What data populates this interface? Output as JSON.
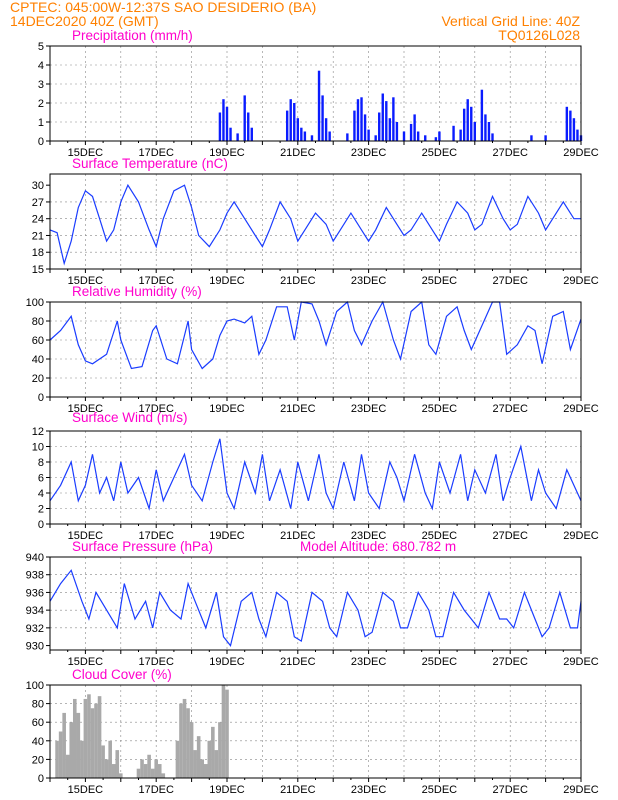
{
  "header": {
    "line1": "CPTEC:   045:00W-12:37S  SAO DESIDERIO (BA)",
    "line2_left": "14DEC2020 40Z (GMT)",
    "line2_right": "Vertical Grid Line: 40Z",
    "line3_right": "TQ0126L028"
  },
  "colors": {
    "series": "#1a3cff",
    "bars": "#0a1cff",
    "title": "#ff00cc",
    "header": "#ff8000",
    "cloud": "#a9a9a9"
  },
  "x_labels": [
    "15DEC",
    "17DEC",
    "19DEC",
    "21DEC",
    "23DEC",
    "25DEC",
    "27DEC",
    "29DEC"
  ],
  "chart_data": [
    {
      "type": "bar",
      "title": "Precipitation (mm/h)",
      "ylim": [
        0,
        5
      ],
      "yticks": [
        0,
        1,
        2,
        3,
        4,
        5
      ],
      "x": [
        18.8,
        18.9,
        19.0,
        19.1,
        19.3,
        19.5,
        19.6,
        19.7,
        20.7,
        20.8,
        20.9,
        21.0,
        21.1,
        21.2,
        21.4,
        21.6,
        21.7,
        21.8,
        21.9,
        22.4,
        22.6,
        22.7,
        22.8,
        22.9,
        23.0,
        23.2,
        23.3,
        23.4,
        23.5,
        23.6,
        23.7,
        23.8,
        24.0,
        24.2,
        24.3,
        24.4,
        24.6,
        24.9,
        25.0,
        25.4,
        25.6,
        25.7,
        25.8,
        25.9,
        26.0,
        26.2,
        26.3,
        26.4,
        26.5,
        27.6,
        28.0,
        28.6,
        28.7,
        28.8,
        28.9,
        29.0
      ],
      "values": [
        1.5,
        2.2,
        1.8,
        0.7,
        0.4,
        2.4,
        1.5,
        0.7,
        1.6,
        2.2,
        2.0,
        1.2,
        0.7,
        0.5,
        0.3,
        3.7,
        2.4,
        1.2,
        0.5,
        0.4,
        1.6,
        2.2,
        2.3,
        1.4,
        0.6,
        0.3,
        1.5,
        2.5,
        2.1,
        1.2,
        2.3,
        1.0,
        0.5,
        0.9,
        1.4,
        0.5,
        0.3,
        0.2,
        0.5,
        0.8,
        0.6,
        1.7,
        2.2,
        1.8,
        1.0,
        2.7,
        1.4,
        1.0,
        0.4,
        0.3,
        0.3,
        1.8,
        1.6,
        1.2,
        0.6,
        0.3
      ]
    },
    {
      "type": "line",
      "title": "Surface Temperature (nC)",
      "ylim": [
        15,
        32
      ],
      "yticks": [
        15,
        18,
        21,
        24,
        27,
        30
      ],
      "x": [
        14.0,
        14.2,
        14.4,
        14.6,
        14.8,
        15.0,
        15.2,
        15.4,
        15.6,
        15.8,
        16.0,
        16.2,
        16.5,
        16.8,
        17.0,
        17.2,
        17.5,
        17.8,
        18.0,
        18.2,
        18.5,
        18.8,
        19.0,
        19.2,
        19.5,
        19.8,
        20.0,
        20.2,
        20.5,
        20.8,
        21.0,
        21.2,
        21.5,
        21.8,
        22.0,
        22.2,
        22.5,
        22.8,
        23.0,
        23.2,
        23.5,
        23.8,
        24.0,
        24.2,
        24.5,
        24.8,
        25.0,
        25.2,
        25.5,
        25.8,
        26.0,
        26.2,
        26.5,
        26.8,
        27.0,
        27.2,
        27.5,
        27.8,
        28.0,
        28.2,
        28.5,
        28.8,
        29.0
      ],
      "values": [
        22,
        21.5,
        16,
        20,
        26,
        29,
        28,
        24,
        20,
        22,
        27,
        30,
        27,
        22,
        19,
        24,
        29,
        30,
        26,
        21,
        19,
        22,
        25,
        27,
        24,
        21,
        19,
        22,
        27,
        24,
        20,
        22,
        25,
        23,
        20,
        22,
        25,
        22,
        20,
        22,
        26,
        23,
        21,
        22,
        25,
        22,
        20,
        23,
        27,
        25,
        22,
        23,
        28,
        24,
        22,
        23,
        28,
        25,
        22,
        24,
        27,
        24,
        24
      ]
    },
    {
      "type": "line",
      "title": "Relative Humidity (%)",
      "ylim": [
        0,
        100
      ],
      "yticks": [
        0,
        20,
        40,
        60,
        80,
        100
      ],
      "x": [
        14.0,
        14.3,
        14.6,
        14.8,
        15.0,
        15.2,
        15.6,
        15.9,
        16.0,
        16.3,
        16.6,
        16.9,
        17.0,
        17.3,
        17.6,
        17.9,
        18.0,
        18.3,
        18.6,
        18.8,
        19.0,
        19.2,
        19.5,
        19.7,
        19.9,
        20.1,
        20.4,
        20.7,
        20.9,
        21.1,
        21.4,
        21.6,
        21.8,
        22.1,
        22.4,
        22.6,
        22.8,
        23.1,
        23.4,
        23.7,
        23.9,
        24.2,
        24.5,
        24.7,
        24.9,
        25.2,
        25.5,
        25.7,
        25.9,
        26.2,
        26.5,
        26.7,
        26.9,
        27.2,
        27.5,
        27.7,
        27.9,
        28.2,
        28.5,
        28.7,
        29.0
      ],
      "values": [
        60,
        70,
        85,
        55,
        38,
        35,
        45,
        80,
        60,
        30,
        32,
        70,
        75,
        40,
        35,
        80,
        50,
        30,
        40,
        65,
        80,
        82,
        78,
        85,
        45,
        60,
        95,
        95,
        60,
        100,
        98,
        80,
        55,
        90,
        100,
        70,
        55,
        80,
        100,
        60,
        40,
        90,
        100,
        55,
        45,
        85,
        95,
        70,
        50,
        75,
        100,
        100,
        45,
        55,
        75,
        70,
        35,
        85,
        90,
        50,
        82
      ]
    },
    {
      "type": "line",
      "title": "Surface Wind (m/s)",
      "ylim": [
        0,
        12
      ],
      "yticks": [
        0,
        2,
        4,
        6,
        8,
        10,
        12
      ],
      "x": [
        14.0,
        14.3,
        14.6,
        14.8,
        15.0,
        15.2,
        15.4,
        15.6,
        15.8,
        16.0,
        16.2,
        16.5,
        16.8,
        17.0,
        17.2,
        17.5,
        17.8,
        18.0,
        18.3,
        18.6,
        18.8,
        19.0,
        19.2,
        19.5,
        19.8,
        20.0,
        20.2,
        20.5,
        20.8,
        21.0,
        21.3,
        21.6,
        21.8,
        22.0,
        22.3,
        22.6,
        22.8,
        23.0,
        23.3,
        23.6,
        23.8,
        24.0,
        24.3,
        24.6,
        24.8,
        25.0,
        25.3,
        25.6,
        25.8,
        26.0,
        26.3,
        26.6,
        26.8,
        27.0,
        27.3,
        27.6,
        27.8,
        28.0,
        28.3,
        28.6,
        28.8,
        29.0
      ],
      "values": [
        3,
        5,
        8,
        3,
        5,
        9,
        4,
        6,
        3,
        8,
        4,
        6,
        2,
        7,
        3,
        6,
        9,
        5,
        3,
        8,
        11,
        4,
        2,
        8,
        4,
        9,
        3,
        7,
        2,
        8,
        3,
        9,
        4,
        2,
        8,
        3,
        9,
        4,
        2,
        8,
        6,
        3,
        9,
        4,
        2,
        8,
        4,
        9,
        3,
        7,
        4,
        9,
        3,
        6,
        10,
        3,
        7,
        4,
        2,
        7,
        5,
        3
      ]
    },
    {
      "type": "line",
      "title": "Surface Pressure (hPa)",
      "annotation": "Model Altitude: 680.782 m",
      "ylim": [
        929.5,
        940
      ],
      "yticks": [
        930,
        932,
        934,
        936,
        938,
        940
      ],
      "x": [
        14.0,
        14.3,
        14.6,
        14.9,
        15.1,
        15.3,
        15.6,
        15.9,
        16.1,
        16.4,
        16.7,
        16.9,
        17.1,
        17.4,
        17.7,
        17.9,
        18.1,
        18.4,
        18.7,
        18.9,
        19.1,
        19.4,
        19.7,
        19.9,
        20.1,
        20.4,
        20.7,
        20.9,
        21.1,
        21.4,
        21.7,
        21.9,
        22.1,
        22.4,
        22.7,
        22.9,
        23.1,
        23.4,
        23.7,
        23.9,
        24.1,
        24.4,
        24.7,
        24.9,
        25.1,
        25.4,
        25.7,
        25.9,
        26.1,
        26.4,
        26.7,
        26.9,
        27.1,
        27.4,
        27.7,
        27.9,
        28.1,
        28.4,
        28.7,
        28.9,
        29.0
      ],
      "values": [
        935,
        937,
        938.5,
        935,
        933,
        936,
        934,
        932,
        937,
        933,
        935,
        932,
        936,
        934,
        933,
        937,
        935,
        932,
        936,
        931,
        930,
        935,
        936,
        933,
        931,
        936,
        935,
        931,
        930.5,
        936,
        935,
        932,
        931,
        936,
        934,
        931,
        931.5,
        936,
        935,
        932,
        932,
        936,
        934,
        931,
        931,
        936,
        934,
        933,
        932,
        936,
        933,
        933,
        932,
        936,
        933,
        931,
        932,
        936,
        932,
        932,
        935
      ]
    },
    {
      "type": "bar",
      "title": "Cloud Cover (%)",
      "ylim": [
        0,
        100
      ],
      "yticks": [
        0,
        20,
        40,
        60,
        80,
        100
      ],
      "x": [
        14.2,
        14.3,
        14.4,
        14.5,
        14.6,
        14.7,
        14.8,
        14.9,
        15.0,
        15.1,
        15.2,
        15.3,
        15.4,
        15.5,
        15.6,
        15.7,
        15.8,
        15.9,
        16.0,
        16.1,
        16.2,
        16.3,
        16.4,
        16.5,
        16.6,
        16.7,
        16.8,
        16.9,
        17.0,
        17.1,
        17.2,
        17.3,
        17.4,
        17.5,
        17.6,
        17.7,
        17.8,
        17.9,
        18.0,
        18.1,
        18.2,
        18.3,
        18.4,
        18.5,
        18.6,
        18.7,
        18.8,
        18.9,
        19.0
      ],
      "values": [
        40,
        50,
        70,
        25,
        60,
        85,
        70,
        40,
        85,
        90,
        75,
        80,
        88,
        35,
        20,
        40,
        15,
        30,
        5,
        0,
        0,
        0,
        0,
        10,
        20,
        15,
        25,
        10,
        20,
        15,
        5,
        0,
        0,
        0,
        40,
        80,
        85,
        75,
        60,
        30,
        45,
        20,
        15,
        40,
        55,
        30,
        60,
        100,
        95
      ]
    }
  ]
}
